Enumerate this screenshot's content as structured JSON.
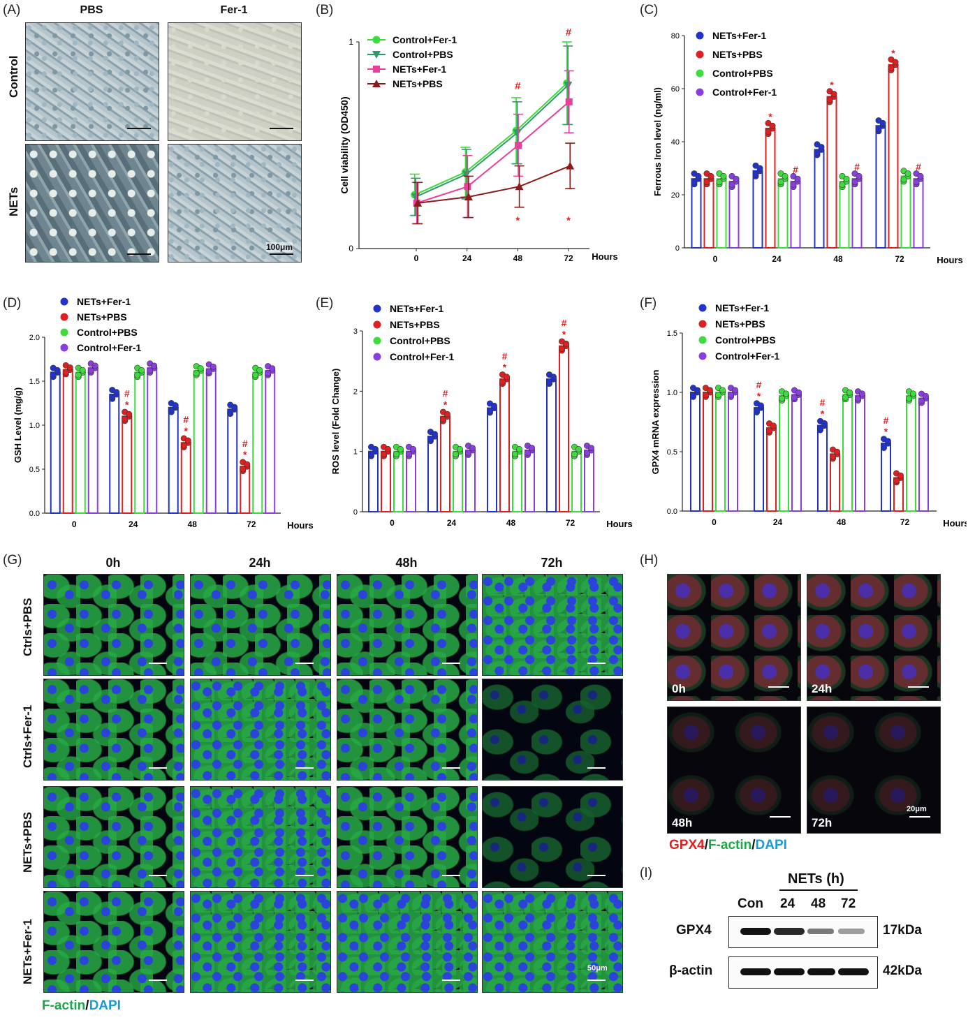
{
  "panels": {
    "A": {
      "label": "(A)",
      "cols": [
        "PBS",
        "Fer-1"
      ],
      "rows": [
        "Control",
        "NETs"
      ],
      "scale": "100μm"
    },
    "B": {
      "label": "(B)"
    },
    "C": {
      "label": "(C)"
    },
    "D": {
      "label": "(D)"
    },
    "E": {
      "label": "(E)"
    },
    "F": {
      "label": "(F)"
    },
    "G": {
      "label": "(G)",
      "cols": [
        "0h",
        "24h",
        "48h",
        "72h"
      ],
      "rows": [
        "Ctrls+PBS",
        "Ctrls+Fer-1",
        "NETs+PBS",
        "NETs+Fer-1"
      ],
      "scale": "50μm",
      "stain": {
        "a": "F-actin",
        "sep": "/",
        "b": "DAPI"
      },
      "colors": {
        "factin": "#1fa64a",
        "dapi": "#1a9ad9"
      }
    },
    "H": {
      "label": "(H)",
      "times": [
        "0h",
        "24h",
        "48h",
        "72h"
      ],
      "scale": "20μm",
      "stain": {
        "a": "GPX4",
        "sep1": "/",
        "b": "F-actin",
        "sep2": "/",
        "c": "DAPI"
      },
      "colors": {
        "gpx4": "#e02020",
        "factin": "#1fa64a",
        "dapi": "#1a9ad9"
      }
    },
    "I": {
      "label": "(I)",
      "header": "NETs (h)",
      "lanes": [
        "Con",
        "24",
        "48",
        "72"
      ],
      "proteins": [
        {
          "name": "GPX4",
          "size": "17kDa",
          "intensity": [
            1.0,
            0.9,
            0.55,
            0.4
          ]
        },
        {
          "name": "β-actin",
          "size": "42kDa",
          "intensity": [
            1.0,
            1.0,
            1.0,
            1.0
          ]
        }
      ]
    }
  },
  "chart_data": [
    {
      "panel": "B",
      "type": "line",
      "xlabel": "Hours",
      "ylabel": "Cell viability (OD450)",
      "x": [
        0,
        24,
        48,
        72
      ],
      "ylim": [
        0,
        1
      ],
      "yticks": [
        0,
        1
      ],
      "series": [
        {
          "name": "Control+Fer-1",
          "color": "#3ddc3d",
          "marker": "circle",
          "values": [
            0.26,
            0.37,
            0.57,
            0.8
          ],
          "err": [
            0.1,
            0.12,
            0.16,
            0.2
          ]
        },
        {
          "name": "Control+PBS",
          "color": "#2e9a68",
          "marker": "triangle-down",
          "values": [
            0.25,
            0.36,
            0.56,
            0.79
          ],
          "err": [
            0.09,
            0.12,
            0.15,
            0.19
          ]
        },
        {
          "name": "NETs+Fer-1",
          "color": "#e63f9c",
          "marker": "square",
          "values": [
            0.22,
            0.3,
            0.5,
            0.71
          ],
          "err": [
            0.1,
            0.15,
            0.15,
            0.15
          ]
        },
        {
          "name": "NETs+PBS",
          "color": "#8b1a1a",
          "marker": "triangle-up",
          "values": [
            0.22,
            0.25,
            0.3,
            0.4
          ],
          "err": [
            0.1,
            0.1,
            0.1,
            0.11
          ]
        }
      ],
      "annotations": [
        {
          "x": 48,
          "y": 0.77,
          "text": "#"
        },
        {
          "x": 72,
          "y": 1.03,
          "text": "#"
        },
        {
          "x": 48,
          "y": 0.12,
          "text": "*"
        },
        {
          "x": 72,
          "y": 0.12,
          "text": "*"
        }
      ]
    },
    {
      "panel": "C",
      "type": "bar",
      "xlabel": "Hours",
      "ylabel": "Ferrous Iron level (ng/ml)",
      "categories": [
        "0",
        "24",
        "48",
        "72"
      ],
      "ylim": [
        0,
        80
      ],
      "yticks": [
        0,
        20,
        40,
        60,
        80
      ],
      "series": [
        {
          "name": "NETs+Fer-1",
          "color": "#2233cc",
          "values": [
            26,
            29,
            37,
            46
          ]
        },
        {
          "name": "NETs+PBS",
          "color": "#e02020",
          "values": [
            26,
            45,
            57,
            69
          ]
        },
        {
          "name": "Control+PBS",
          "color": "#3ddc3d",
          "values": [
            26,
            26,
            25,
            27
          ]
        },
        {
          "name": "Control+Fer-1",
          "color": "#8a3ee0",
          "values": [
            25,
            25,
            26,
            26
          ]
        }
      ],
      "annotations": [
        {
          "cat": 1,
          "series": 1,
          "text": "*"
        },
        {
          "cat": 2,
          "series": 1,
          "text": "*"
        },
        {
          "cat": 3,
          "series": 1,
          "text": "*"
        },
        {
          "cat": 1,
          "series": 3,
          "text": "#"
        },
        {
          "cat": 2,
          "series": 3,
          "text": "#"
        },
        {
          "cat": 3,
          "series": 3,
          "text": "#"
        }
      ]
    },
    {
      "panel": "D",
      "type": "bar",
      "xlabel": "Hours",
      "ylabel": "GSH Level (mg/g)",
      "categories": [
        "0",
        "24",
        "48",
        "72"
      ],
      "ylim": [
        0,
        2
      ],
      "yticks": [
        "0.0",
        "0.5",
        "1.0",
        "1.5",
        "2.0"
      ],
      "series": [
        {
          "name": "NETs+Fer-1",
          "color": "#2233cc",
          "values": [
            1.6,
            1.35,
            1.2,
            1.18
          ]
        },
        {
          "name": "NETs+PBS",
          "color": "#e02020",
          "values": [
            1.63,
            1.1,
            0.8,
            0.53
          ]
        },
        {
          "name": "Control+PBS",
          "color": "#3ddc3d",
          "values": [
            1.6,
            1.6,
            1.62,
            1.6
          ]
        },
        {
          "name": "Control+Fer-1",
          "color": "#8a3ee0",
          "values": [
            1.65,
            1.65,
            1.64,
            1.62
          ]
        }
      ],
      "annotations": [
        {
          "cat": 1,
          "series": 1,
          "text": "*"
        },
        {
          "cat": 2,
          "series": 1,
          "text": "*"
        },
        {
          "cat": 3,
          "series": 1,
          "text": "*"
        },
        {
          "cat": 1,
          "series": 1,
          "text": "#",
          "above": true
        },
        {
          "cat": 2,
          "series": 1,
          "text": "#",
          "above": true
        },
        {
          "cat": 3,
          "series": 1,
          "text": "#",
          "above": true
        }
      ]
    },
    {
      "panel": "E",
      "type": "bar",
      "xlabel": "Hours",
      "ylabel": "ROS level (Fold Change)",
      "categories": [
        "0",
        "24",
        "48",
        "72"
      ],
      "ylim": [
        0,
        3
      ],
      "yticks": [
        0,
        1,
        2,
        3
      ],
      "series": [
        {
          "name": "NETs+Fer-1",
          "color": "#2233cc",
          "values": [
            1.0,
            1.25,
            1.72,
            2.2
          ]
        },
        {
          "name": "NETs+PBS",
          "color": "#e02020",
          "values": [
            1.0,
            1.58,
            2.2,
            2.75
          ]
        },
        {
          "name": "Control+PBS",
          "color": "#3ddc3d",
          "values": [
            1.0,
            1.0,
            1.0,
            1.0
          ]
        },
        {
          "name": "Control+Fer-1",
          "color": "#8a3ee0",
          "values": [
            1.0,
            1.02,
            1.02,
            1.02
          ]
        }
      ],
      "annotations": [
        {
          "cat": 1,
          "series": 1,
          "text": "*"
        },
        {
          "cat": 2,
          "series": 1,
          "text": "*"
        },
        {
          "cat": 3,
          "series": 1,
          "text": "*"
        },
        {
          "cat": 1,
          "series": 1,
          "text": "#",
          "above": true
        },
        {
          "cat": 2,
          "series": 1,
          "text": "#",
          "above": true
        },
        {
          "cat": 3,
          "series": 1,
          "text": "#",
          "above": true
        }
      ]
    },
    {
      "panel": "F",
      "type": "bar",
      "xlabel": "Hours",
      "ylabel": "GPX4 mRNA expression",
      "categories": [
        "0",
        "24",
        "48",
        "72"
      ],
      "ylim": [
        0,
        1.5
      ],
      "yticks": [
        "0.0",
        "0.5",
        "1.0",
        "1.5"
      ],
      "series": [
        {
          "name": "NETs+Fer-1",
          "color": "#2233cc",
          "values": [
            1.0,
            0.87,
            0.72,
            0.57
          ]
        },
        {
          "name": "NETs+PBS",
          "color": "#e02020",
          "values": [
            1.0,
            0.7,
            0.48,
            0.28
          ]
        },
        {
          "name": "Control+PBS",
          "color": "#3ddc3d",
          "values": [
            1.0,
            0.97,
            0.98,
            0.97
          ]
        },
        {
          "name": "Control+Fer-1",
          "color": "#8a3ee0",
          "values": [
            1.0,
            0.98,
            0.97,
            0.95
          ]
        }
      ],
      "annotations": [
        {
          "cat": 1,
          "series": 0,
          "text": "*"
        },
        {
          "cat": 2,
          "series": 0,
          "text": "*"
        },
        {
          "cat": 3,
          "series": 0,
          "text": "*"
        },
        {
          "cat": 1,
          "series": 0,
          "text": "#",
          "above": true
        },
        {
          "cat": 2,
          "series": 0,
          "text": "#",
          "above": true
        },
        {
          "cat": 3,
          "series": 0,
          "text": "#",
          "above": true
        }
      ]
    }
  ]
}
